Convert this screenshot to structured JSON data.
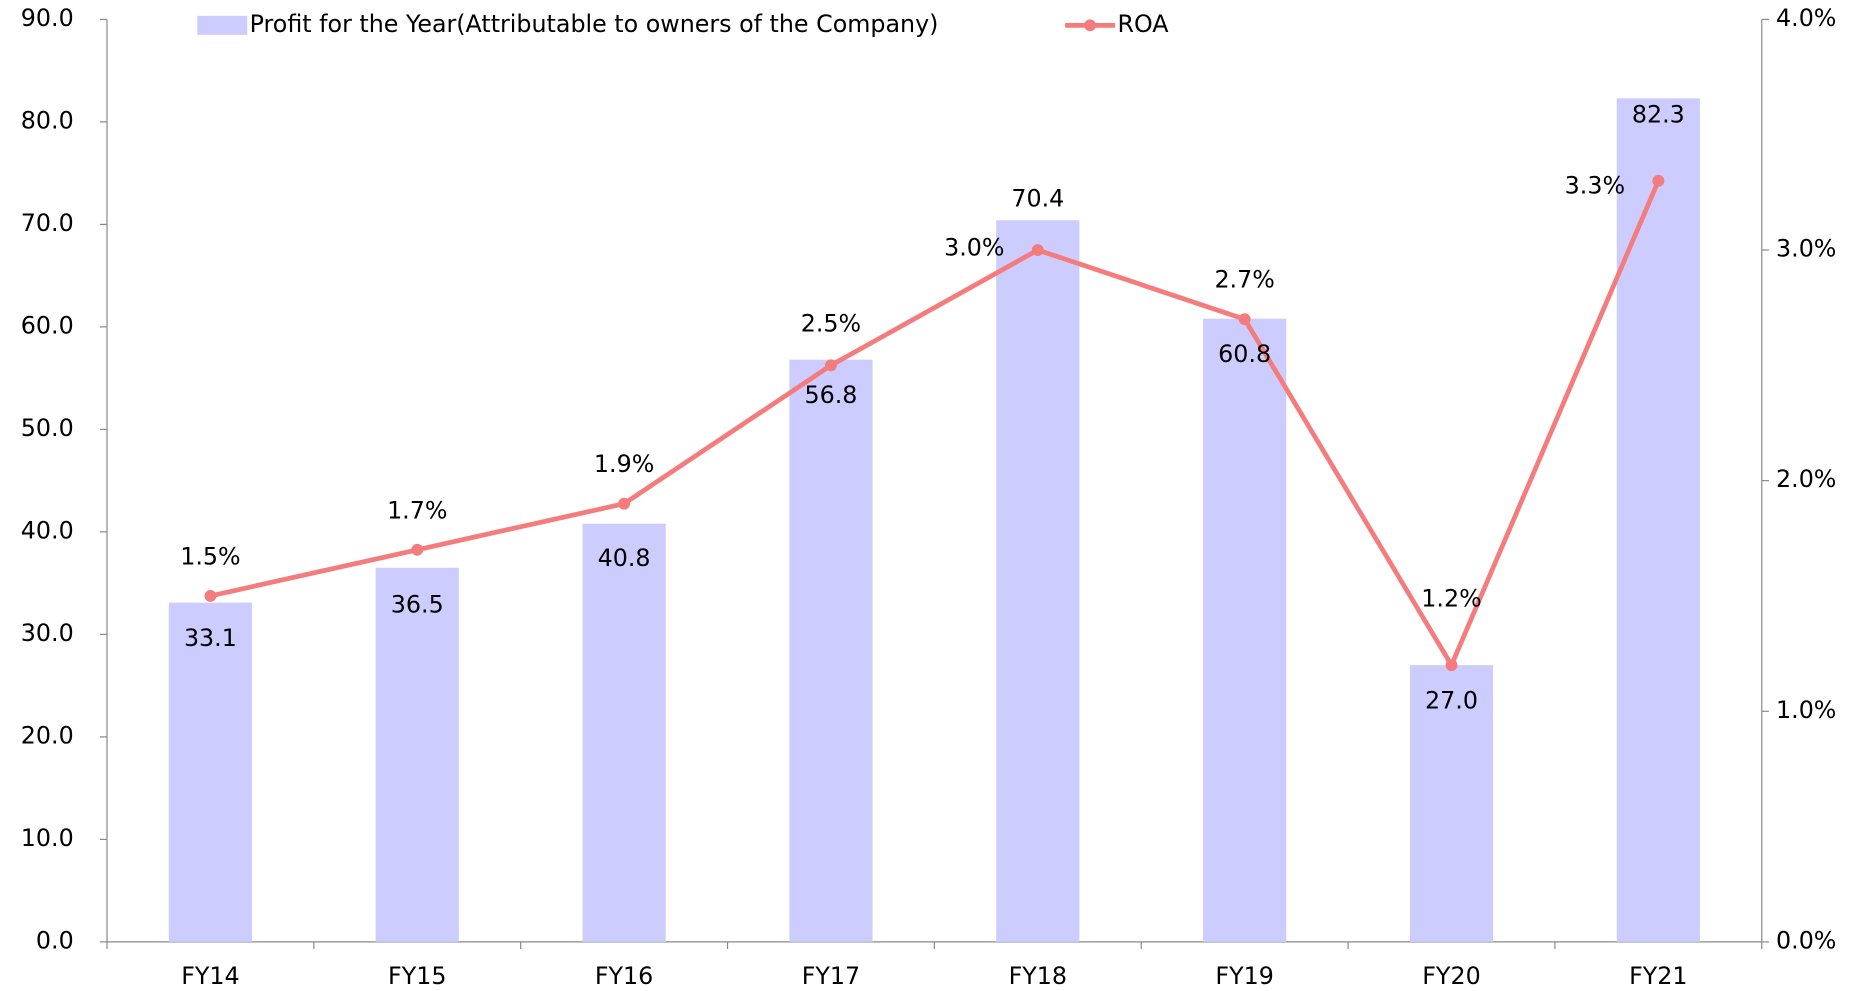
{
  "chart_data": {
    "type": "bar-line",
    "categories": [
      "FY14",
      "FY15",
      "FY16",
      "FY17",
      "FY18",
      "FY19",
      "FY20",
      "FY21"
    ],
    "series": [
      {
        "name": "Profit for the Year(Attributable to owners of the Company)",
        "color": "#ccccff",
        "type": "bar",
        "values": [
          33.1,
          36.5,
          40.8,
          56.8,
          70.4,
          60.8,
          27.0,
          82.3
        ],
        "value_labels": [
          "33.1",
          "36.5",
          "40.8",
          "56.8",
          "70.4",
          "60.8",
          "27.0",
          "82.3"
        ]
      },
      {
        "name": "ROA",
        "color": "#f47c7c",
        "type": "line",
        "axis": "y2",
        "values": [
          1.5,
          1.7,
          1.9,
          2.5,
          3.0,
          2.7,
          1.2,
          3.3
        ],
        "value_labels": [
          "1.5%",
          "1.7%",
          "1.9%",
          "2.5%",
          "3.0%",
          "2.7%",
          "1.2%",
          "3.3%"
        ]
      }
    ],
    "ylim": [
      0,
      90
    ],
    "yticks": [
      {
        "value": 0,
        "label": "0.0"
      },
      {
        "value": 10,
        "label": "10.0"
      },
      {
        "value": 20,
        "label": "20.0"
      },
      {
        "value": 30,
        "label": "30.0"
      },
      {
        "value": 40,
        "label": "40.0"
      },
      {
        "value": 50,
        "label": "50.0"
      },
      {
        "value": 60,
        "label": "60.0"
      },
      {
        "value": 70,
        "label": "70.0"
      },
      {
        "value": 80,
        "label": "80.0"
      },
      {
        "value": 90,
        "label": "90.0"
      }
    ],
    "y2lim": [
      0,
      4
    ],
    "y2ticks": [
      {
        "value": 0,
        "label": "0.0%"
      },
      {
        "value": 1,
        "label": "1.0%"
      },
      {
        "value": 2,
        "label": "2.0%"
      },
      {
        "value": 3,
        "label": "3.0%"
      },
      {
        "value": 4,
        "label": "4.0%"
      }
    ],
    "legend": "top",
    "grid": false
  }
}
